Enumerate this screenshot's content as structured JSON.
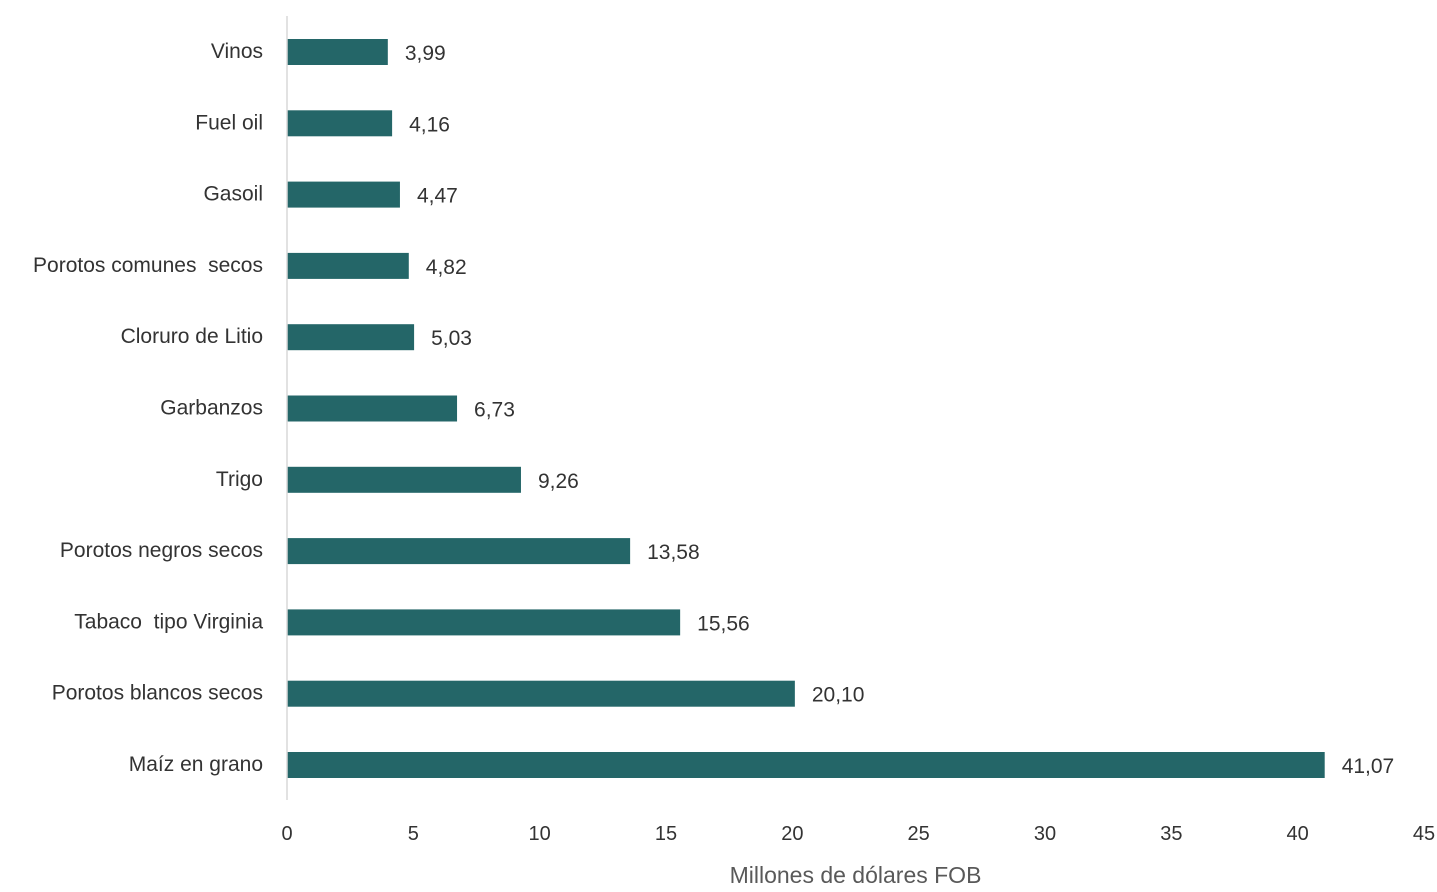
{
  "chart_data": {
    "type": "bar",
    "orientation": "horizontal",
    "categories": [
      "Vinos",
      "Fuel oil",
      "Gasoil",
      "Porotos comunes  secos",
      "Cloruro de Litio",
      "Garbanzos",
      "Trigo",
      "Porotos negros secos",
      "Tabaco  tipo Virginia",
      "Porotos blancos secos",
      "Maíz en grano"
    ],
    "values": [
      3.99,
      4.16,
      4.47,
      4.82,
      5.03,
      6.73,
      9.26,
      13.58,
      15.56,
      20.1,
      41.07
    ],
    "value_labels": [
      "3,99",
      "4,16",
      "4,47",
      "4,82",
      "5,03",
      "6,73",
      "9,26",
      "13,58",
      "15,56",
      "20,10",
      "41,07"
    ],
    "xlabel": "Millones de dólares FOB",
    "ylabel": "",
    "title": "",
    "xlim": [
      0,
      45
    ],
    "xticks": [
      0,
      5,
      10,
      15,
      20,
      25,
      30,
      35,
      40,
      45
    ],
    "xtick_labels": [
      "0",
      "5",
      "10",
      "15",
      "20",
      "25",
      "30",
      "35",
      "40",
      "45"
    ],
    "grid": false,
    "legend": "none",
    "bar_color": "#246668",
    "axis_color": "#d9d9d9"
  }
}
